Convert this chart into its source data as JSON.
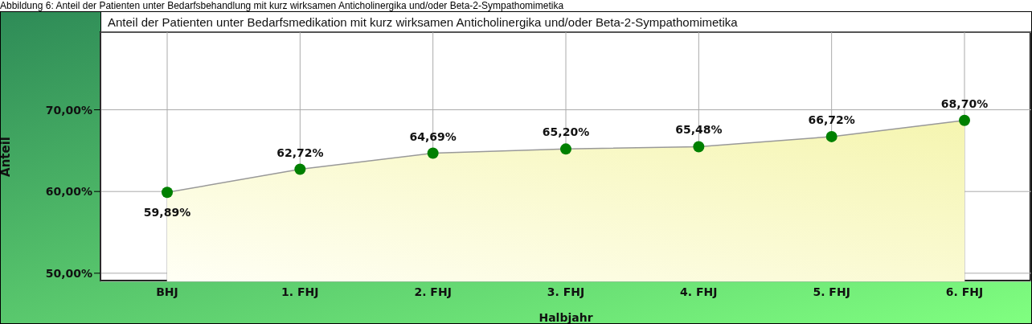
{
  "chart_data": {
    "type": "area",
    "title": "Anteil der Patienten unter Bedarfsmedikation mit kurz wirksamen Anticholinergika und/oder Beta-2-Sympathomimetika",
    "annotations": [
      "Abbildung 6: Anteil der Patienten unter Bedarfsbehandlung mit kurz wirksamen Anticholinergika und/oder Beta-2-Sympathomimetika"
    ],
    "xlabel": "Halbjahr",
    "ylabel": "Anteil",
    "categories": [
      "BHJ",
      "1. FHJ",
      "2. FHJ",
      "3. FHJ",
      "4. FHJ",
      "5. FHJ",
      "6. FHJ"
    ],
    "series": [
      {
        "color": "#008000",
        "values": [
          59.89,
          62.72,
          64.69,
          65.2,
          65.48,
          66.72,
          68.7
        ],
        "value_labels": [
          "59,89%",
          "62,72%",
          "64,69%",
          "65,20%",
          "65,48%",
          "66,72%",
          "68,70%"
        ]
      }
    ],
    "ylim": [
      49,
      79.5
    ],
    "yticks": [
      {
        "value": 50,
        "label": "50,00%"
      },
      {
        "value": 60,
        "label": "60,00%"
      },
      {
        "value": 70,
        "label": "70,00%"
      }
    ],
    "grid": true,
    "marker": "circle"
  }
}
